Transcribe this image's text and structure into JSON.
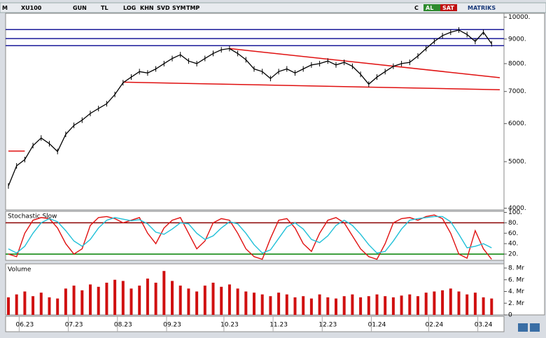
{
  "toolbar": {
    "items": [
      "M",
      "XU100",
      "GUN",
      "TL",
      "LOG",
      "KHN",
      "SVD",
      "SYM",
      "TMP",
      "C",
      "AL",
      "SAT",
      "MATRIKS"
    ]
  },
  "chart_data": [
    {
      "type": "line",
      "log_scale": true,
      "grid": false,
      "ylim": [
        3980,
        10150
      ],
      "yticks": [
        {
          "value": 10000,
          "label": "10000."
        },
        {
          "value": 9000,
          "label": "9000."
        },
        {
          "value": 8000,
          "label": "8000."
        },
        {
          "value": 7000,
          "label": "7000."
        },
        {
          "value": 6000,
          "label": "6000."
        },
        {
          "value": 5000,
          "label": "5000."
        },
        {
          "value": 4000,
          "label": "4000."
        }
      ],
      "series": [
        {
          "color": "#000000",
          "values": [
            4450,
            4900,
            5050,
            5400,
            5600,
            5450,
            5250,
            5700,
            5950,
            6100,
            6300,
            6450,
            6600,
            6900,
            7300,
            7500,
            7700,
            7650,
            7800,
            8000,
            8200,
            8350,
            8100,
            8000,
            8200,
            8400,
            8550,
            8600,
            8400,
            8150,
            7800,
            7700,
            7450,
            7700,
            7800,
            7650,
            7800,
            7950,
            8000,
            8100,
            7950,
            8050,
            7900,
            7600,
            7250,
            7500,
            7700,
            7900,
            8000,
            8050,
            8300,
            8600,
            8900,
            9150,
            9300,
            9400,
            9200,
            8900,
            9300,
            8800
          ]
        }
      ],
      "hlines": [
        {
          "value": 9420,
          "color": "#1a1a9a"
        },
        {
          "value": 9020,
          "color": "#1a1a9a"
        },
        {
          "value": 8720,
          "color": "#1a1a9a"
        }
      ],
      "trendlines": [
        {
          "color": "#e01010",
          "x": [
            27,
            60
          ],
          "y": [
            8600,
            7480
          ]
        },
        {
          "color": "#e01010",
          "x": [
            14,
            60
          ],
          "y": [
            7320,
            7060
          ]
        },
        {
          "color": "#e01010",
          "x": [
            0,
            2
          ],
          "y": [
            5260,
            5260
          ]
        }
      ]
    },
    {
      "type": "line",
      "title": "Stochastic.Slow",
      "grid": false,
      "ylim": [
        8,
        102
      ],
      "yticks": [
        {
          "value": 100,
          "label": "100."
        },
        {
          "value": 80,
          "label": "80."
        },
        {
          "value": 60,
          "label": "60."
        },
        {
          "value": 40,
          "label": "40."
        },
        {
          "value": 20,
          "label": "20."
        }
      ],
      "hlines": [
        {
          "value": 80,
          "color": "#8b0000"
        },
        {
          "value": 20,
          "color": "#008000"
        }
      ],
      "series": [
        {
          "color": "#e01010",
          "values": [
            20,
            15,
            60,
            85,
            90,
            88,
            70,
            40,
            20,
            30,
            75,
            90,
            92,
            88,
            80,
            85,
            90,
            60,
            40,
            70,
            85,
            90,
            60,
            30,
            45,
            80,
            88,
            85,
            60,
            30,
            15,
            10,
            50,
            85,
            88,
            70,
            40,
            25,
            60,
            85,
            90,
            80,
            55,
            30,
            15,
            10,
            40,
            80,
            88,
            90,
            85,
            92,
            95,
            88,
            60,
            20,
            12,
            65,
            30,
            10
          ]
        },
        {
          "color": "#20c0d8",
          "values": [
            30,
            22,
            35,
            60,
            80,
            88,
            82,
            65,
            45,
            35,
            48,
            70,
            85,
            90,
            87,
            84,
            86,
            78,
            62,
            58,
            68,
            80,
            78,
            60,
            48,
            55,
            70,
            82,
            78,
            60,
            38,
            22,
            28,
            50,
            72,
            80,
            68,
            48,
            42,
            55,
            75,
            85,
            75,
            58,
            38,
            22,
            25,
            45,
            68,
            85,
            88,
            90,
            92,
            92,
            82,
            58,
            32,
            35,
            40,
            32
          ]
        }
      ]
    },
    {
      "type": "bar",
      "title": "Volume",
      "grid": false,
      "color": "#d01010",
      "ylim": [
        0,
        8.6
      ],
      "yticks": [
        {
          "value": 8,
          "label": "8. Mr"
        },
        {
          "value": 6,
          "label": "6. Mr"
        },
        {
          "value": 4,
          "label": "4. Mr"
        },
        {
          "value": 2,
          "label": "2. Mr"
        },
        0
      ],
      "categories": [
        null,
        null,
        "06.23",
        null,
        null,
        null,
        null,
        null,
        "07.23",
        null,
        null,
        null,
        null,
        null,
        "08.23",
        null,
        null,
        null,
        null,
        null,
        "09.23",
        null,
        null,
        null,
        null,
        null,
        null,
        "10.23",
        null,
        null,
        null,
        null,
        null,
        "11.23",
        null,
        null,
        null,
        null,
        null,
        "12.23",
        null,
        null,
        null,
        null,
        null,
        "01.24",
        null,
        null,
        null,
        null,
        null,
        null,
        "02.24",
        null,
        null,
        null,
        null,
        null,
        "03.24",
        null
      ],
      "values": [
        3,
        3.5,
        4,
        3.2,
        3.8,
        3,
        2.8,
        4.5,
        5,
        4.2,
        5.2,
        4.8,
        5.5,
        6,
        5.8,
        4.5,
        5,
        6.2,
        5.5,
        7.5,
        5.8,
        5,
        4.5,
        4,
        5,
        5.5,
        4.8,
        5.2,
        4.5,
        4,
        3.8,
        3.5,
        3.2,
        3.8,
        3.5,
        3,
        3.2,
        2.8,
        3.5,
        3,
        2.8,
        3.2,
        3.5,
        3,
        3.2,
        3.5,
        3.2,
        3,
        3.3,
        3.5,
        3.2,
        3.8,
        4,
        4.2,
        4.5,
        4,
        3.5,
        3.8,
        3,
        2.8
      ]
    }
  ]
}
